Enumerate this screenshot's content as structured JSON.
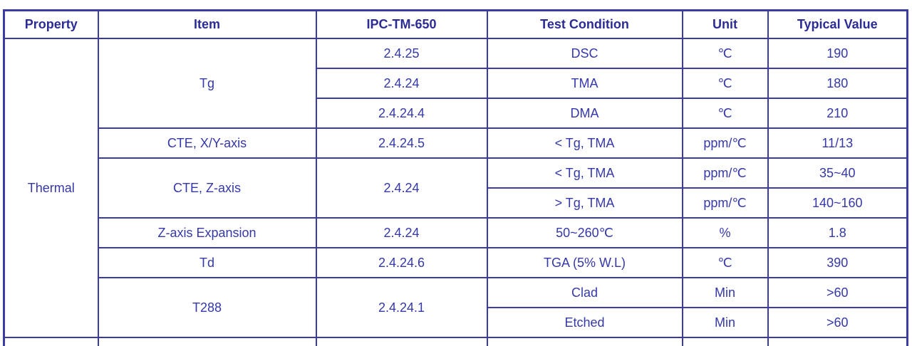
{
  "colors": {
    "border": "#3b3ba3",
    "header_text": "#2b2b96",
    "body_text": "#3538a8",
    "background": "#ffffff"
  },
  "table": {
    "headers": [
      "Property",
      "Item",
      "IPC-TM-650",
      "Test Condition",
      "Unit",
      "Typical Value"
    ],
    "property_group": "Thermal",
    "rows": [
      {
        "item": "Tg",
        "ipc": "2.4.25",
        "condition": "DSC",
        "unit": "℃",
        "value": "190"
      },
      {
        "ipc": "2.4.24",
        "condition": "TMA",
        "unit": "℃",
        "value": "180"
      },
      {
        "ipc": "2.4.24.4",
        "condition": "DMA",
        "unit": "℃",
        "value": "210"
      },
      {
        "item": "CTE, X/Y-axis",
        "ipc": "2.4.24.5",
        "condition": "< Tg, TMA",
        "unit": "ppm/℃",
        "value": "11/13"
      },
      {
        "item": "CTE, Z-axis",
        "ipc": "2.4.24",
        "condition": "< Tg, TMA",
        "unit": "ppm/℃",
        "value": "35~40"
      },
      {
        "condition": "> Tg, TMA",
        "unit": "ppm/℃",
        "value": "140~160"
      },
      {
        "item": "Z-axis Expansion",
        "ipc": "2.4.24",
        "condition": "50~260℃",
        "unit": "%",
        "value": "1.8"
      },
      {
        "item": "Td",
        "ipc": "2.4.24.6",
        "condition": "TGA (5% W.L)",
        "unit": "℃",
        "value": "390"
      },
      {
        "item": "T288",
        "ipc": "2.4.24.1",
        "condition": "Clad",
        "unit": "Min",
        "value": ">60"
      },
      {
        "condition": "Etched",
        "unit": "Min",
        "value": ">60"
      }
    ]
  }
}
